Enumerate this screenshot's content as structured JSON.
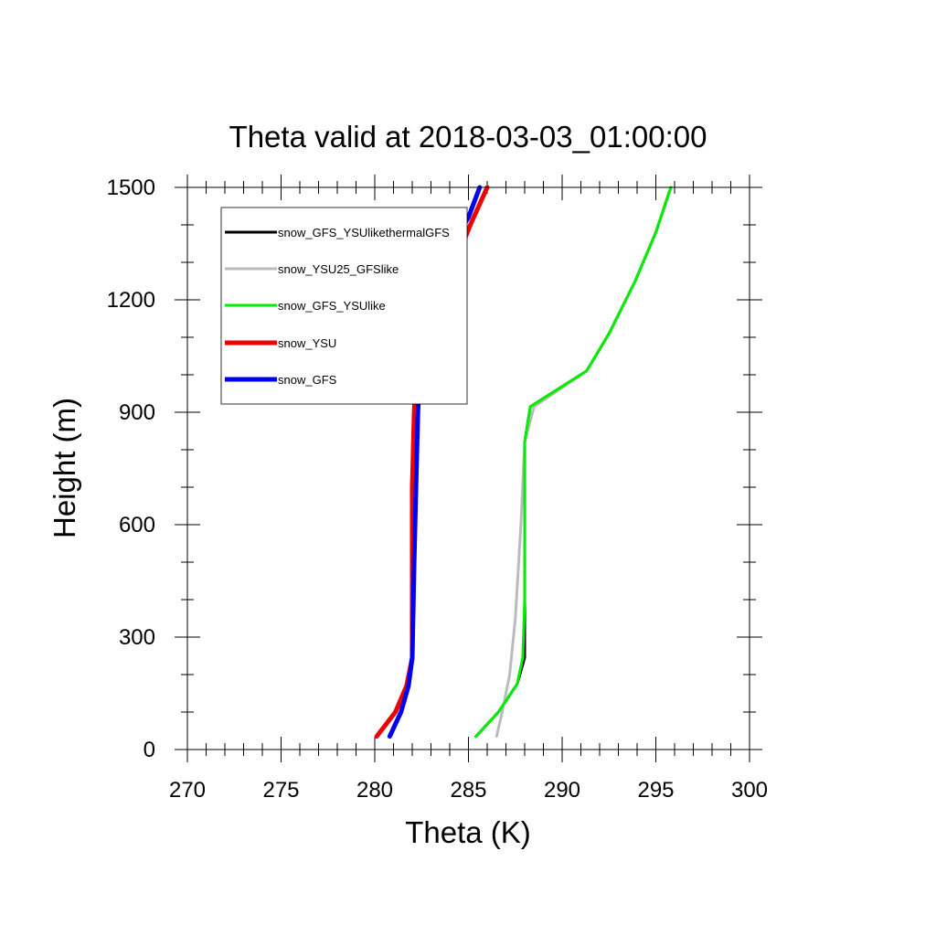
{
  "chart_data": {
    "type": "line",
    "title": "Theta valid at 2018-03-03_01:00:00",
    "xlabel": "Theta (K)",
    "ylabel": "Height (m)",
    "xlim": [
      270,
      300
    ],
    "ylim": [
      0,
      1500
    ],
    "x_ticks": [
      270,
      275,
      280,
      285,
      290,
      295,
      300
    ],
    "y_ticks": [
      0,
      300,
      600,
      900,
      1200,
      1500
    ],
    "x_tick_labels": [
      "270",
      "275",
      "280",
      "285",
      "290",
      "295",
      "300"
    ],
    "y_tick_labels": [
      "0",
      "300",
      "600",
      "900",
      "1200",
      "1500"
    ],
    "grid": false,
    "legend_position": "top-left",
    "series": [
      {
        "name": "snow_GFS_YSUlikethermalGFS",
        "color": "#000000",
        "points": [
          [
            285.4,
            35
          ],
          [
            286.6,
            100
          ],
          [
            287.6,
            175
          ],
          [
            288.0,
            245
          ],
          [
            288.0,
            400
          ],
          [
            288.0,
            600
          ],
          [
            288.0,
            820
          ],
          [
            288.3,
            915
          ],
          [
            291.3,
            1010
          ],
          [
            292.5,
            1110
          ],
          [
            293.9,
            1250
          ],
          [
            295.0,
            1380
          ],
          [
            295.8,
            1500
          ]
        ]
      },
      {
        "name": "snow_YSU25_GFSlike",
        "color": "#bbbbbb",
        "points": [
          [
            286.5,
            35
          ],
          [
            286.8,
            100
          ],
          [
            287.2,
            200
          ],
          [
            287.5,
            350
          ],
          [
            287.8,
            600
          ],
          [
            288.0,
            820
          ],
          [
            288.5,
            915
          ],
          [
            291.3,
            1010
          ],
          [
            292.5,
            1110
          ],
          [
            293.9,
            1250
          ],
          [
            295.0,
            1380
          ],
          [
            295.8,
            1500
          ]
        ]
      },
      {
        "name": "snow_GFS_YSUlike",
        "color": "#00ee00",
        "points": [
          [
            285.4,
            35
          ],
          [
            286.6,
            100
          ],
          [
            287.6,
            175
          ],
          [
            287.9,
            245
          ],
          [
            288.0,
            400
          ],
          [
            288.0,
            600
          ],
          [
            288.0,
            820
          ],
          [
            288.3,
            915
          ],
          [
            291.3,
            1010
          ],
          [
            292.5,
            1110
          ],
          [
            293.9,
            1250
          ],
          [
            295.0,
            1380
          ],
          [
            295.8,
            1500
          ]
        ]
      },
      {
        "name": "snow_YSU",
        "color": "#ee0000",
        "points": [
          [
            280.1,
            35
          ],
          [
            281.1,
            100
          ],
          [
            281.7,
            170
          ],
          [
            282.0,
            245
          ],
          [
            282.0,
            500
          ],
          [
            282.0,
            700
          ],
          [
            282.1,
            900
          ],
          [
            282.2,
            1000
          ],
          [
            282.7,
            1100
          ],
          [
            283.4,
            1200
          ],
          [
            284.3,
            1300
          ],
          [
            285.1,
            1400
          ],
          [
            286.0,
            1500
          ]
        ]
      },
      {
        "name": "snow_GFS",
        "color": "#0000ee",
        "points": [
          [
            280.8,
            35
          ],
          [
            281.4,
            100
          ],
          [
            281.8,
            170
          ],
          [
            282.0,
            245
          ],
          [
            282.1,
            500
          ],
          [
            282.2,
            700
          ],
          [
            282.3,
            900
          ],
          [
            282.4,
            1000
          ],
          [
            282.6,
            1100
          ],
          [
            282.9,
            1195
          ],
          [
            283.4,
            1300
          ],
          [
            284.4,
            1370
          ],
          [
            285.0,
            1420
          ],
          [
            285.6,
            1500
          ]
        ]
      }
    ]
  }
}
